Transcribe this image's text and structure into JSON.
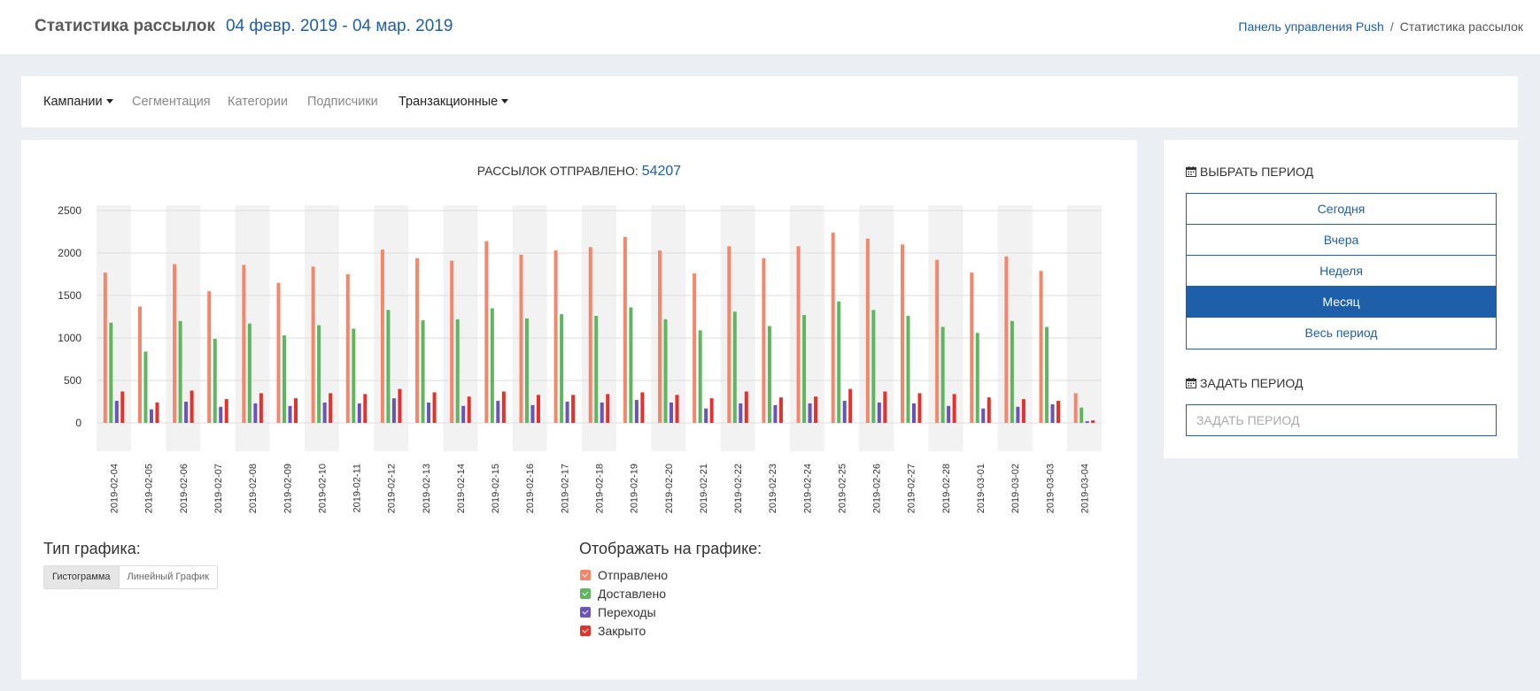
{
  "header": {
    "title": "Статистика рассылок",
    "date_range": "04 февр. 2019 - 04 мар. 2019",
    "breadcrumb": {
      "link": "Панель управления Push",
      "separator": "/",
      "current": "Статистика рассылок"
    }
  },
  "nav": {
    "campaigns": "Кампании",
    "segmentation": "Сегментация",
    "categories": "Категории",
    "subscribers": "Подписчики",
    "transactional": "Транзакционные"
  },
  "summary": {
    "label": "РАССЫЛОК ОТПРАВЛЕНО:",
    "count": "54207"
  },
  "chart_type": {
    "title": "Тип графика:",
    "histogram": "Гистограмма",
    "line": "Линейный График"
  },
  "legend": {
    "title": "Отображать на графике:",
    "items": [
      {
        "label": "Отправлено",
        "color": "#f4876b"
      },
      {
        "label": "Доставлено",
        "color": "#5fb65f"
      },
      {
        "label": "Переходы",
        "color": "#6b53b8"
      },
      {
        "label": "Закрыто",
        "color": "#e3322c"
      }
    ]
  },
  "side": {
    "choose_title": "ВЫБРАТЬ ПЕРИОД",
    "periods": [
      "Сегодня",
      "Вчера",
      "Неделя",
      "Месяц",
      "Весь период"
    ],
    "active_period": "Месяц",
    "set_title": "ЗАДАТЬ ПЕРИОД",
    "input_placeholder": "ЗАДАТЬ ПЕРИОД"
  },
  "chart_data": {
    "type": "bar",
    "ylim": [
      0,
      2500
    ],
    "yticks": [
      "0",
      "500",
      "1000",
      "1500",
      "2000",
      "2500"
    ],
    "categories": [
      "2019-02-04",
      "2019-02-05",
      "2019-02-06",
      "2019-02-07",
      "2019-02-08",
      "2019-02-09",
      "2019-02-10",
      "2019-02-11",
      "2019-02-12",
      "2019-02-13",
      "2019-02-14",
      "2019-02-15",
      "2019-02-16",
      "2019-02-17",
      "2019-02-18",
      "2019-02-19",
      "2019-02-20",
      "2019-02-21",
      "2019-02-22",
      "2019-02-23",
      "2019-02-24",
      "2019-02-25",
      "2019-02-26",
      "2019-02-27",
      "2019-02-28",
      "2019-03-01",
      "2019-03-02",
      "2019-03-03",
      "2019-03-04"
    ],
    "series": [
      {
        "name": "Отправлено",
        "color": "#f4876b",
        "values": [
          1770,
          1370,
          1870,
          1550,
          1860,
          1650,
          1840,
          1750,
          2040,
          1940,
          1910,
          2140,
          1980,
          2030,
          2070,
          2190,
          2030,
          1760,
          2080,
          1940,
          2080,
          2240,
          2170,
          2100,
          1920,
          1770,
          1960,
          1790,
          350
        ]
      },
      {
        "name": "Доставлено",
        "color": "#5fb65f",
        "values": [
          1180,
          840,
          1200,
          990,
          1170,
          1030,
          1150,
          1110,
          1330,
          1210,
          1220,
          1350,
          1230,
          1280,
          1260,
          1360,
          1220,
          1090,
          1310,
          1140,
          1270,
          1430,
          1330,
          1260,
          1130,
          1060,
          1200,
          1130,
          180
        ]
      },
      {
        "name": "Переходы",
        "color": "#6b53b8",
        "values": [
          260,
          160,
          250,
          190,
          230,
          200,
          240,
          230,
          290,
          240,
          200,
          260,
          210,
          250,
          240,
          270,
          240,
          170,
          230,
          210,
          230,
          260,
          240,
          230,
          200,
          170,
          190,
          220,
          20
        ]
      },
      {
        "name": "Закрыто",
        "color": "#e3322c",
        "values": [
          370,
          240,
          380,
          280,
          350,
          290,
          350,
          340,
          400,
          360,
          310,
          370,
          330,
          330,
          340,
          360,
          330,
          290,
          370,
          300,
          310,
          400,
          370,
          350,
          340,
          300,
          280,
          260,
          30
        ]
      }
    ]
  }
}
